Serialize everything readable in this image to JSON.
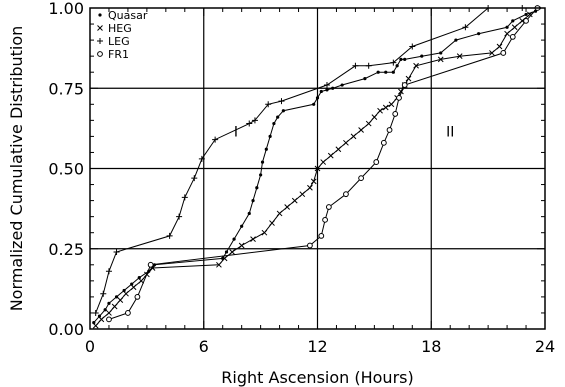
{
  "chart_data": {
    "type": "line",
    "title": "",
    "xlabel": "Right Ascension (Hours)",
    "ylabel": "Normalized Cumulative Distribution",
    "xlim": [
      0,
      24
    ],
    "ylim": [
      0,
      1
    ],
    "xticks": [
      0,
      6,
      12,
      18,
      24
    ],
    "xtick_labels": [
      "0",
      "6",
      "12",
      "18",
      "24"
    ],
    "yticks": [
      0,
      0.25,
      0.5,
      0.75,
      1.0
    ],
    "ytick_labels": [
      "0.00",
      "0.25",
      "0.50",
      "0.75",
      "1.00"
    ],
    "grid": {
      "vertical": [
        6,
        12,
        18
      ],
      "horizontal": [
        0.25,
        0.5,
        0.75
      ]
    },
    "region_labels": [
      {
        "text": "I",
        "x": 7.7,
        "y": 0.6
      },
      {
        "text": "II",
        "x": 19.0,
        "y": 0.6
      }
    ],
    "legend_position": "top-left",
    "series": [
      {
        "name": "Quasar",
        "marker": "dot",
        "x": [
          0.2,
          0.5,
          0.8,
          1.0,
          1.4,
          1.8,
          2.2,
          2.6,
          3.1,
          3.4,
          7.0,
          7.2,
          7.6,
          8.0,
          8.4,
          8.6,
          8.8,
          9.0,
          9.1,
          9.3,
          9.5,
          9.7,
          9.9,
          10.2,
          11.8,
          12.0,
          12.2,
          12.5,
          12.8,
          13.3,
          14.5,
          15.2,
          15.6,
          16.0,
          16.2,
          16.4,
          16.6,
          17.5,
          18.5,
          19.3,
          20.5,
          22.0,
          22.3,
          23.0,
          23.5,
          23.7
        ],
        "y": [
          0.02,
          0.04,
          0.06,
          0.08,
          0.1,
          0.12,
          0.14,
          0.16,
          0.18,
          0.2,
          0.22,
          0.24,
          0.28,
          0.32,
          0.36,
          0.4,
          0.44,
          0.48,
          0.52,
          0.56,
          0.6,
          0.64,
          0.66,
          0.68,
          0.7,
          0.72,
          0.74,
          0.745,
          0.75,
          0.76,
          0.78,
          0.8,
          0.8,
          0.8,
          0.82,
          0.84,
          0.84,
          0.85,
          0.86,
          0.9,
          0.92,
          0.94,
          0.96,
          0.98,
          0.99,
          1.0
        ]
      },
      {
        "name": "HEG",
        "marker": "x",
        "x": [
          0.3,
          0.6,
          1.0,
          1.3,
          1.6,
          1.9,
          2.3,
          2.7,
          3.0,
          3.3,
          6.8,
          7.1,
          7.5,
          8.0,
          8.6,
          9.2,
          9.6,
          10.0,
          10.4,
          10.8,
          11.2,
          11.6,
          11.8,
          12.0,
          12.3,
          12.7,
          13.1,
          13.5,
          13.9,
          14.3,
          14.7,
          15.0,
          15.3,
          15.6,
          15.9,
          16.2,
          16.4,
          16.6,
          16.8,
          17.2,
          18.5,
          19.5,
          21.2,
          21.6,
          22.0,
          22.4,
          22.8,
          23.2
        ],
        "y": [
          0.01,
          0.03,
          0.05,
          0.07,
          0.09,
          0.11,
          0.13,
          0.15,
          0.17,
          0.19,
          0.2,
          0.22,
          0.24,
          0.26,
          0.28,
          0.3,
          0.33,
          0.36,
          0.38,
          0.4,
          0.42,
          0.44,
          0.46,
          0.5,
          0.52,
          0.54,
          0.56,
          0.58,
          0.6,
          0.62,
          0.64,
          0.66,
          0.68,
          0.69,
          0.7,
          0.72,
          0.74,
          0.76,
          0.78,
          0.82,
          0.84,
          0.85,
          0.86,
          0.88,
          0.92,
          0.94,
          0.96,
          0.98
        ]
      },
      {
        "name": "LEG",
        "marker": "plus",
        "x": [
          0.3,
          0.7,
          1.0,
          1.4,
          4.2,
          4.7,
          5.0,
          5.5,
          5.9,
          6.6,
          8.4,
          8.7,
          9.4,
          10.1,
          12.5,
          14.0,
          14.7,
          16.0,
          17.0,
          19.8,
          21.0,
          22.8
        ],
        "y": [
          0.05,
          0.11,
          0.18,
          0.24,
          0.29,
          0.35,
          0.41,
          0.47,
          0.53,
          0.59,
          0.64,
          0.65,
          0.7,
          0.71,
          0.76,
          0.82,
          0.82,
          0.83,
          0.88,
          0.94,
          1.0,
          1.0
        ]
      },
      {
        "name": "FR1",
        "marker": "circle",
        "x": [
          1.0,
          2.0,
          2.5,
          3.2,
          11.6,
          12.2,
          12.4,
          12.6,
          13.5,
          14.3,
          15.1,
          15.5,
          15.8,
          16.1,
          16.3,
          16.6,
          21.8,
          22.3,
          23.0,
          23.6
        ],
        "y": [
          0.03,
          0.05,
          0.1,
          0.2,
          0.26,
          0.29,
          0.34,
          0.38,
          0.42,
          0.47,
          0.52,
          0.58,
          0.62,
          0.67,
          0.72,
          0.76,
          0.86,
          0.91,
          0.96,
          1.0
        ]
      }
    ]
  }
}
